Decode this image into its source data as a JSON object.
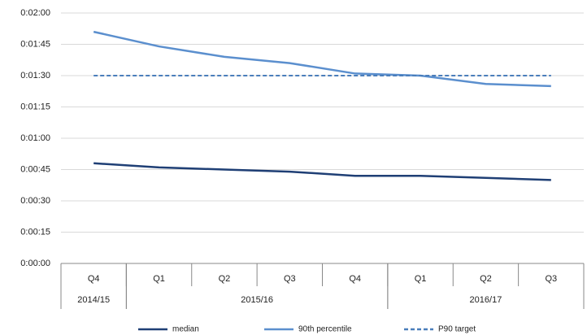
{
  "chart_data": {
    "type": "line",
    "categories": [
      "Q4",
      "Q1",
      "Q2",
      "Q3",
      "Q4",
      "Q1",
      "Q2",
      "Q3"
    ],
    "groups": [
      {
        "label": "2014/15",
        "n": 1
      },
      {
        "label": "2015/16",
        "n": 4
      },
      {
        "label": "2016/17",
        "n": 3
      }
    ],
    "series": [
      {
        "name": "median",
        "color": "#1f3f75",
        "dashed": false,
        "values": [
          48,
          46,
          45,
          44,
          42,
          42,
          41,
          40
        ]
      },
      {
        "name": "90th percentile",
        "color": "#5b8fce",
        "dashed": false,
        "values": [
          111,
          104,
          99,
          96,
          91,
          90,
          86,
          85
        ]
      },
      {
        "name": "P90 target",
        "color": "#4a7ebb",
        "dashed": true,
        "values": [
          90,
          90,
          90,
          90,
          90,
          90,
          90,
          90
        ]
      }
    ],
    "ylim": [
      0,
      120
    ],
    "yticks": [
      {
        "value": 0,
        "label": "0:00:00"
      },
      {
        "value": 15,
        "label": "0:00:15"
      },
      {
        "value": 30,
        "label": "0:00:30"
      },
      {
        "value": 45,
        "label": "0:00:45"
      },
      {
        "value": 60,
        "label": "0:01:00"
      },
      {
        "value": 75,
        "label": "0:01:15"
      },
      {
        "value": 90,
        "label": "0:01:30"
      },
      {
        "value": 105,
        "label": "0:01:45"
      },
      {
        "value": 120,
        "label": "0:02:00"
      }
    ],
    "grid": true,
    "legend": "bottom"
  }
}
